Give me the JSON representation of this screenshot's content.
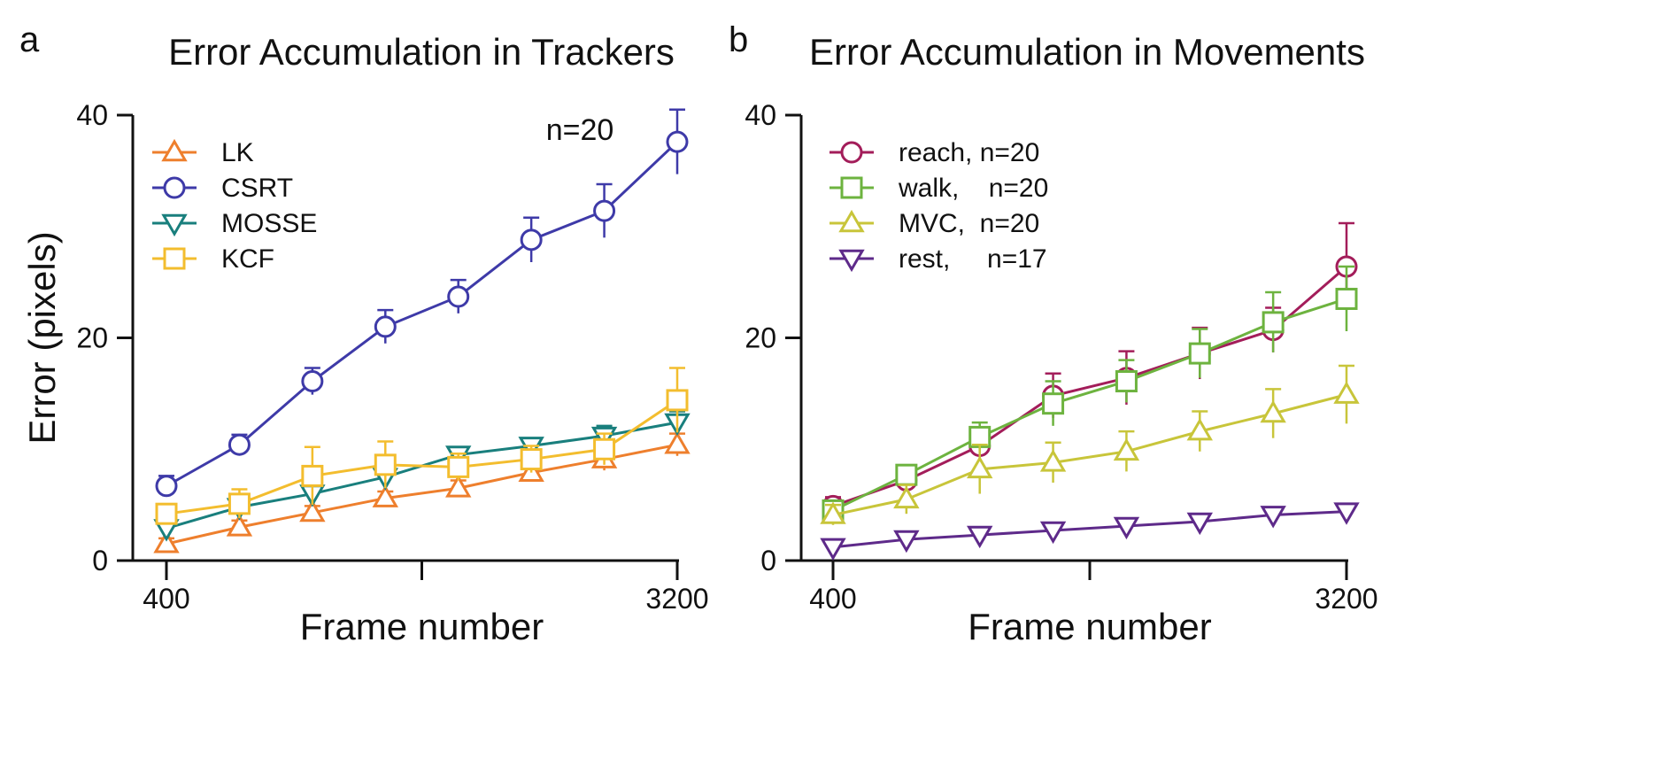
{
  "chart_data": [
    {
      "panel": "a",
      "type": "line",
      "title": "Error Accumulation in Trackers",
      "xlabel": "Frame number",
      "ylabel": "Error (pixels)",
      "annotation": "n=20",
      "xlim": [
        400,
        3200
      ],
      "ylim": [
        0,
        40
      ],
      "x_ticks": [
        400,
        1800,
        3200
      ],
      "x_tick_labels": [
        "400",
        "",
        "3200"
      ],
      "y_ticks": [
        0,
        20,
        40
      ],
      "y_tick_labels": [
        "0",
        "20",
        "40"
      ],
      "x": [
        400,
        800,
        1200,
        1600,
        2000,
        2400,
        2800,
        3200
      ],
      "legend_position": "top-left",
      "grid": false,
      "series": [
        {
          "name": "LK",
          "marker": "triangle-up",
          "color": "#EE7F2D",
          "values": [
            1.5,
            3.0,
            4.3,
            5.6,
            6.5,
            7.9,
            9.1,
            10.4
          ],
          "errors": [
            0.5,
            0.6,
            0.6,
            0.6,
            0.7,
            0.8,
            1.0,
            1.0
          ]
        },
        {
          "name": "CSRT",
          "marker": "circle",
          "color": "#3E3AA8",
          "values": [
            6.7,
            10.4,
            16.1,
            21.0,
            23.7,
            28.8,
            31.4,
            37.6
          ],
          "errors": [
            0.9,
            0.9,
            1.2,
            1.5,
            1.5,
            2.0,
            2.4,
            2.9
          ]
        },
        {
          "name": "MOSSE",
          "marker": "triangle-down",
          "color": "#197F7D",
          "values": [
            2.9,
            4.8,
            6.0,
            7.5,
            9.5,
            10.3,
            11.2,
            12.4
          ],
          "errors": [
            0.5,
            0.5,
            0.5,
            0.6,
            0.5,
            0.6,
            0.9,
            1.0
          ]
        },
        {
          "name": "KCF",
          "marker": "square",
          "color": "#F3BD2E",
          "values": [
            4.2,
            5.1,
            7.6,
            8.6,
            8.4,
            9.1,
            10.0,
            14.4
          ],
          "errors": [
            0.8,
            1.3,
            2.6,
            2.1,
            1.2,
            1.2,
            1.4,
            2.9
          ]
        }
      ]
    },
    {
      "panel": "b",
      "type": "line",
      "title": "Error Accumulation in Movements",
      "xlabel": "Frame number",
      "ylabel": "",
      "xlim": [
        400,
        3200
      ],
      "ylim": [
        0,
        40
      ],
      "x_ticks": [
        400,
        1800,
        3200
      ],
      "x_tick_labels": [
        "400",
        "",
        "3200"
      ],
      "y_ticks": [
        0,
        20,
        40
      ],
      "y_tick_labels": [
        "0",
        "20",
        "40"
      ],
      "x": [
        400,
        800,
        1200,
        1600,
        2000,
        2400,
        2800,
        3200
      ],
      "legend_position": "top-left",
      "grid": false,
      "series": [
        {
          "name": "reach, n=20",
          "marker": "circle",
          "color": "#A31D5A",
          "values": [
            4.9,
            7.2,
            10.3,
            14.8,
            16.4,
            18.6,
            20.7,
            26.4
          ],
          "errors": [
            0.8,
            0.9,
            1.2,
            2.0,
            2.4,
            2.3,
            2.0,
            3.9
          ]
        },
        {
          "name": "walk,    n=20",
          "marker": "square",
          "color": "#6DB33F",
          "values": [
            4.5,
            7.7,
            11.1,
            14.1,
            16.1,
            18.6,
            21.4,
            23.5
          ],
          "errors": [
            0.8,
            0.8,
            1.3,
            2.0,
            1.9,
            2.2,
            2.7,
            2.9
          ]
        },
        {
          "name": "MVC,  n=20",
          "marker": "triangle-up",
          "color": "#C8C53A",
          "values": [
            4.1,
            5.5,
            8.2,
            8.8,
            9.8,
            11.6,
            13.2,
            14.9
          ],
          "errors": [
            0.9,
            1.3,
            2.2,
            1.8,
            1.8,
            1.8,
            2.2,
            2.6
          ]
        },
        {
          "name": "rest,     n=17",
          "marker": "triangle-down",
          "color": "#5E2A8A",
          "values": [
            1.2,
            1.9,
            2.3,
            2.7,
            3.1,
            3.5,
            4.1,
            4.4
          ],
          "errors": [
            0.2,
            0.2,
            0.2,
            0.2,
            0.2,
            0.2,
            0.2,
            0.2
          ]
        }
      ]
    }
  ]
}
